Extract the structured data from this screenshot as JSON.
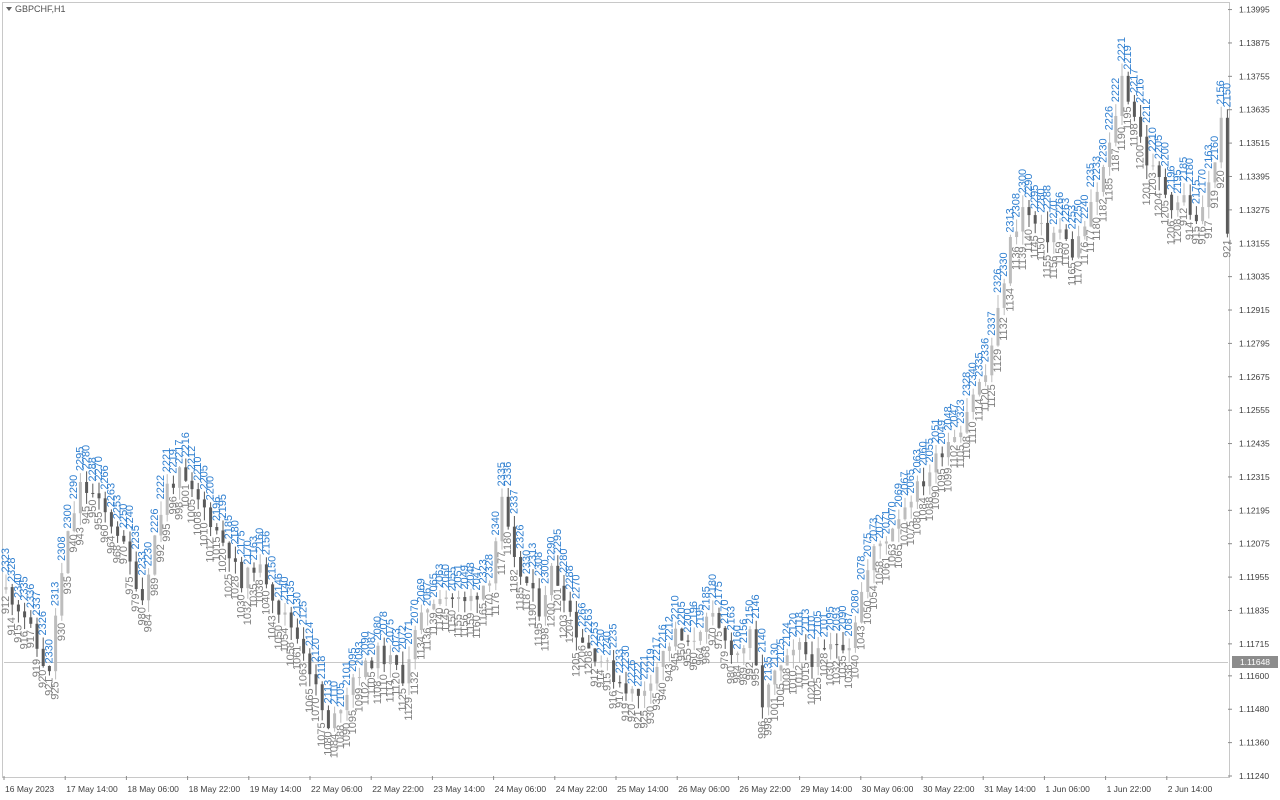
{
  "window": {
    "symbol_label": "GBPCHF,H1"
  },
  "colors": {
    "background": "#ffffff",
    "bull_candle": "#bdbdbd",
    "bear_candle": "#5a5a5a",
    "label_blue": "#2f7fd0",
    "label_gray": "#7f7f7f",
    "axis_text": "#404040",
    "current_price_line": "#c8c8c8",
    "current_price_tag": "#8c8c8c"
  },
  "chart_data": {
    "type": "candlestick",
    "symbol": "GBPCHF",
    "timeframe": "H1",
    "y_ticks": [
      "1.13995",
      "1.13875",
      "1.13755",
      "1.13635",
      "1.13515",
      "1.13395",
      "1.13275",
      "1.13155",
      "1.13035",
      "1.12915",
      "1.12795",
      "1.12675",
      "1.12555",
      "1.12435",
      "1.12315",
      "1.12195",
      "1.12075",
      "1.11955",
      "1.11835",
      "1.11715",
      "1.11600",
      "1.11480",
      "1.11360",
      "1.11240"
    ],
    "x_ticks": [
      "16 May 2023",
      "17 May 14:00",
      "18 May 06:00",
      "18 May 22:00",
      "19 May 14:00",
      "22 May 06:00",
      "22 May 22:00",
      "23 May 14:00",
      "24 May 06:00",
      "24 May 22:00",
      "25 May 14:00",
      "26 May 06:00",
      "26 May 22:00",
      "29 May 14:00",
      "30 May 06:00",
      "30 May 22:00",
      "31 May 14:00",
      "1 Jun 06:00",
      "1 Jun 22:00",
      "2 Jun 14:00"
    ],
    "ylim": [
      1.1124,
      1.14015
    ],
    "current_price": 1.11648,
    "current_price_label": "1.11648",
    "price_path": [
      [
        0,
        1.1191
      ],
      [
        3,
        1.1182
      ],
      [
        5,
        1.117
      ],
      [
        7,
        1.116
      ],
      [
        8,
        1.1182
      ],
      [
        10,
        1.121
      ],
      [
        12,
        1.1228
      ],
      [
        14,
        1.1225
      ],
      [
        16,
        1.1218
      ],
      [
        18,
        1.1212
      ],
      [
        20,
        1.12
      ],
      [
        22,
        1.1188
      ],
      [
        24,
        1.121
      ],
      [
        26,
        1.1228
      ],
      [
        28,
        1.1232
      ],
      [
        30,
        1.1225
      ],
      [
        32,
        1.122
      ],
      [
        34,
        1.1212
      ],
      [
        36,
        1.1205
      ],
      [
        38,
        1.1192
      ],
      [
        40,
        1.12
      ],
      [
        42,
        1.1195
      ],
      [
        44,
        1.1184
      ],
      [
        46,
        1.1178
      ],
      [
        48,
        1.117
      ],
      [
        50,
        1.1155
      ],
      [
        52,
        1.114
      ],
      [
        54,
        1.115
      ],
      [
        56,
        1.116
      ],
      [
        58,
        1.1163
      ],
      [
        60,
        1.1168
      ],
      [
        62,
        1.1165
      ],
      [
        64,
        1.116
      ],
      [
        66,
        1.1175
      ],
      [
        68,
        1.1185
      ],
      [
        70,
        1.119
      ],
      [
        72,
        1.1188
      ],
      [
        74,
        1.1186
      ],
      [
        76,
        1.119
      ],
      [
        78,
        1.1196
      ],
      [
        80,
        1.1222
      ],
      [
        82,
        1.12
      ],
      [
        84,
        1.1193
      ],
      [
        86,
        1.1184
      ],
      [
        88,
        1.1198
      ],
      [
        90,
        1.119
      ],
      [
        92,
        1.1176
      ],
      [
        94,
        1.117
      ],
      [
        96,
        1.1166
      ],
      [
        98,
        1.116
      ],
      [
        100,
        1.1156
      ],
      [
        102,
        1.1152
      ],
      [
        104,
        1.116
      ],
      [
        106,
        1.1168
      ],
      [
        108,
        1.1175
      ],
      [
        110,
        1.117
      ],
      [
        112,
        1.1178
      ],
      [
        114,
        1.118
      ],
      [
        116,
        1.1172
      ],
      [
        118,
        1.1168
      ],
      [
        120,
        1.1174
      ],
      [
        122,
        1.115
      ],
      [
        124,
        1.116
      ],
      [
        126,
        1.1165
      ],
      [
        128,
        1.117
      ],
      [
        130,
        1.1166
      ],
      [
        132,
        1.1168
      ],
      [
        134,
        1.1172
      ],
      [
        136,
        1.1172
      ],
      [
        138,
        1.119
      ],
      [
        140,
        1.1205
      ],
      [
        142,
        1.121
      ],
      [
        144,
        1.1218
      ],
      [
        146,
        1.1225
      ],
      [
        148,
        1.123
      ],
      [
        150,
        1.1238
      ],
      [
        152,
        1.1245
      ],
      [
        154,
        1.125
      ],
      [
        156,
        1.1262
      ],
      [
        158,
        1.1268
      ],
      [
        160,
        1.129
      ],
      [
        162,
        1.1316
      ],
      [
        164,
        1.1328
      ],
      [
        166,
        1.1322
      ],
      [
        168,
        1.1318
      ],
      [
        170,
        1.132
      ],
      [
        172,
        1.1312
      ],
      [
        174,
        1.1322
      ],
      [
        176,
        1.1334
      ],
      [
        178,
        1.135
      ],
      [
        180,
        1.1375
      ],
      [
        182,
        1.1362
      ],
      [
        184,
        1.1345
      ],
      [
        186,
        1.1338
      ],
      [
        188,
        1.133
      ],
      [
        190,
        1.1332
      ],
      [
        192,
        1.1322
      ],
      [
        194,
        1.1336
      ],
      [
        196,
        1.1358
      ],
      [
        197,
        1.1318
      ]
    ],
    "blue_labels": [
      "2323",
      "2328",
      "2340",
      "2335",
      "2336",
      "2337",
      "2326",
      "2330",
      "2313",
      "2308",
      "2300",
      "2290",
      "2295",
      "2280",
      "2288",
      "2270",
      "2266",
      "2263",
      "2253",
      "2250",
      "2240",
      "2235",
      "2233",
      "2230",
      "2226",
      "2222",
      "2221",
      "2219",
      "2217",
      "2216",
      "2212",
      "2210",
      "2205",
      "2200",
      "2196",
      "2195",
      "2185",
      "2180",
      "2175",
      "2170",
      "2163",
      "2160",
      "2156",
      "2150",
      "2146",
      "2140",
      "2135",
      "2130",
      "2125",
      "2124",
      "2120",
      "2118",
      "2113",
      "2110",
      "2105",
      "2101",
      "2095",
      "2093",
      "2090",
      "2087",
      "2080",
      "2078",
      "2075",
      "2073",
      "2072",
      "2071",
      "2070",
      "2069",
      "2067",
      "2065",
      "2063",
      "2060",
      "2055",
      "2051",
      "2049",
      "2048",
      "2047"
    ],
    "gray_labels": [
      "912",
      "914",
      "915",
      "916",
      "917",
      "919",
      "920",
      "921",
      "925",
      "930",
      "935",
      "940",
      "943",
      "945",
      "950",
      "955",
      "960",
      "964",
      "968",
      "970",
      "975",
      "979",
      "980",
      "984",
      "989",
      "992",
      "995",
      "996",
      "998",
      "1001",
      "1005",
      "1008",
      "1010",
      "1012",
      "1015",
      "1020",
      "1025",
      "1028",
      "1030",
      "1032",
      "1035",
      "1038",
      "1040",
      "1043",
      "1050",
      "1054",
      "1058",
      "1061",
      "1063",
      "1065",
      "1070",
      "1075",
      "1080",
      "1084",
      "1088",
      "1090",
      "1095",
      "1099",
      "1102",
      "1105",
      "1108",
      "1110",
      "1114",
      "1120",
      "1125",
      "1129",
      "1132",
      "1134",
      "1136",
      "1139",
      "1140",
      "1145",
      "1150",
      "1155",
      "1156",
      "1159",
      "1160",
      "1165",
      "1170",
      "1176",
      "1177",
      "1180",
      "1182",
      "1185",
      "1187",
      "1190",
      "1195",
      "1198",
      "1200",
      "1201",
      "1203",
      "1204",
      "1205",
      "1206",
      "1208"
    ]
  }
}
